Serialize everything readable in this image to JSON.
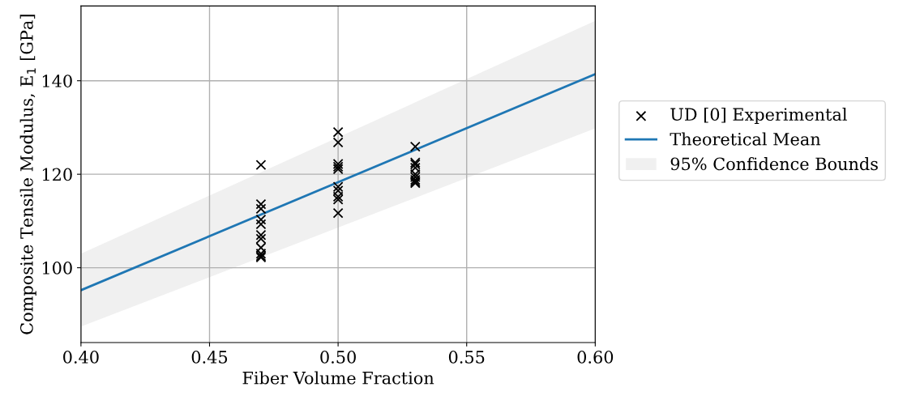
{
  "chart_data": {
    "type": "scatter",
    "xlabel": "Fiber Volume Fraction",
    "ylabel": "Composite Tensile Modulus, E$_{1}$ [GPa]",
    "xlim": [
      0.4,
      0.6
    ],
    "ylim": [
      84,
      156
    ],
    "xticks": [
      {
        "value": 0.4,
        "label": "0.40"
      },
      {
        "value": 0.45,
        "label": "0.45"
      },
      {
        "value": 0.5,
        "label": "0.50"
      },
      {
        "value": 0.55,
        "label": "0.55"
      },
      {
        "value": 0.6,
        "label": "0.60"
      }
    ],
    "yticks": [
      100,
      120,
      140
    ],
    "grid": true,
    "legend": "right",
    "annotations": [
      "95% Confidence Bounds"
    ],
    "series": [
      {
        "name": "UD [0] Experimental",
        "marker": "cross",
        "color": "#000000",
        "x": [
          0.47,
          0.47,
          0.47,
          0.47,
          0.47,
          0.47,
          0.47,
          0.47,
          0.47,
          0.47,
          0.47,
          0.5,
          0.5,
          0.5,
          0.5,
          0.5,
          0.5,
          0.5,
          0.5,
          0.5,
          0.5,
          0.53,
          0.53,
          0.53,
          0.53,
          0.53,
          0.53,
          0.53,
          0.53,
          0.53
        ],
        "values": [
          122,
          113.6,
          112.6,
          110.3,
          109.3,
          107,
          106.2,
          104.3,
          103,
          102.5,
          102.2,
          129,
          126.8,
          122.2,
          121.6,
          121.1,
          117.3,
          116.5,
          115.2,
          114.6,
          111.7,
          125.9,
          122.5,
          122.1,
          121.4,
          120.0,
          119.4,
          118.8,
          118.4,
          118.1
        ]
      },
      {
        "name": "Theoretical Mean",
        "type": "line",
        "color": "#1f77b4",
        "x": [
          0.4,
          0.6
        ],
        "values": [
          95.2,
          141.4
        ],
        "lower": [
          87.4,
          129.8
        ],
        "upper": [
          103.0,
          152.8
        ]
      }
    ]
  }
}
